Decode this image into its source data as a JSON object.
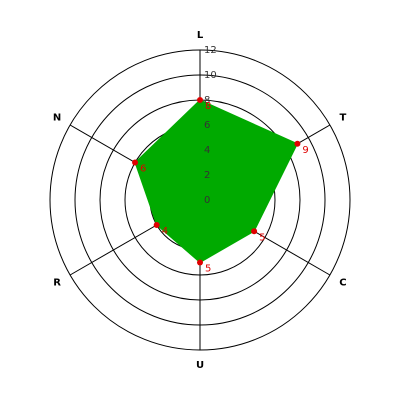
{
  "chart_data": {
    "type": "radar",
    "categories": [
      "L",
      "T",
      "C",
      "U",
      "R",
      "N"
    ],
    "values": [
      8,
      9,
      5,
      5,
      4,
      6
    ],
    "color": "#00aa00",
    "marker_color": "#e00000",
    "ylim": [
      0,
      12
    ],
    "yticks": [
      0,
      2,
      4,
      6,
      8,
      10,
      12
    ],
    "grid": true
  }
}
